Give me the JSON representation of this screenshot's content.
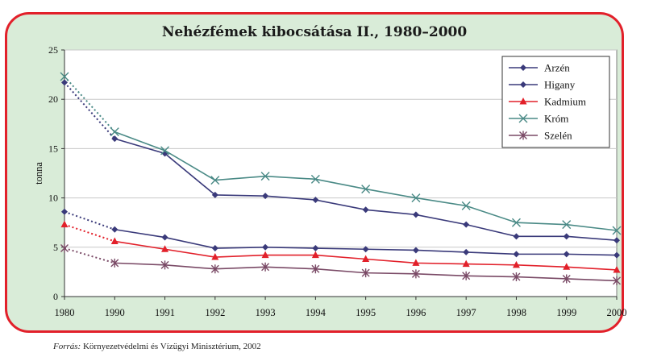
{
  "source": {
    "label": "Forrás:",
    "text": "Környezetvédelmi és Vízügyi Minisztérium, 2002"
  },
  "chart_data": {
    "type": "line",
    "title": "Nehézfémek kibocsátása II., 1980–2000",
    "xlabel": "",
    "ylabel": "tonna",
    "ylim": [
      0,
      25
    ],
    "yticks": [
      0,
      5,
      10,
      15,
      20,
      25
    ],
    "categories": [
      "1980",
      "1990",
      "1991",
      "1992",
      "1993",
      "1994",
      "1995",
      "1996",
      "1997",
      "1998",
      "1999",
      "2000"
    ],
    "grid": true,
    "legend_position": "top-right",
    "note": "",
    "series": [
      {
        "name": "Arzén",
        "color": "#3a3a7a",
        "marker": "diamond",
        "values": [
          21.7,
          16.0,
          14.5,
          10.3,
          10.2,
          9.8,
          8.8,
          8.3,
          7.3,
          6.1,
          6.1,
          5.7
        ]
      },
      {
        "name": "Higany",
        "color": "#3a3a7a",
        "marker": "diamond",
        "values": [
          8.6,
          6.8,
          6.0,
          4.9,
          5.0,
          4.9,
          4.8,
          4.7,
          4.5,
          4.3,
          4.3,
          4.2
        ]
      },
      {
        "name": "Kadmium",
        "color": "#e2202a",
        "marker": "triangle",
        "values": [
          7.3,
          5.6,
          4.8,
          4.0,
          4.2,
          4.2,
          3.8,
          3.4,
          3.3,
          3.2,
          3.0,
          2.7
        ]
      },
      {
        "name": "Króm",
        "color": "#4a8a86",
        "marker": "x",
        "values": [
          22.3,
          16.7,
          14.8,
          11.8,
          12.2,
          11.9,
          10.9,
          10.0,
          9.2,
          7.5,
          7.3,
          6.7
        ]
      },
      {
        "name": "Szelén",
        "color": "#7a4a66",
        "marker": "asterisk",
        "values": [
          4.9,
          3.4,
          3.2,
          2.8,
          3.0,
          2.8,
          2.4,
          2.3,
          2.1,
          2.0,
          1.8,
          1.6
        ]
      }
    ]
  }
}
